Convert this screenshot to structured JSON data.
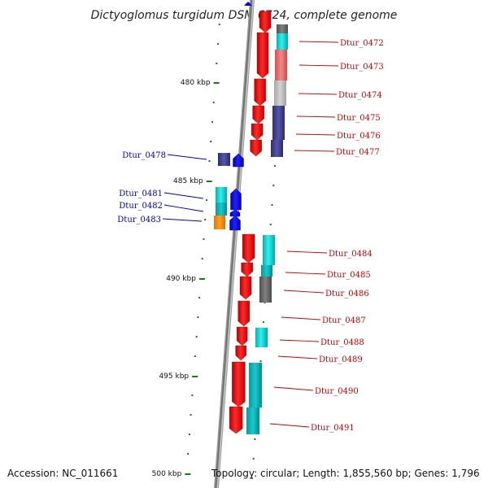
{
  "title": "Dictyoglomus turgidum DSM 6724, complete genome",
  "footer": {
    "accession": "Accession: NC_011661",
    "topology": "Topology: circular; Length: 1,855,560 bp; Genes: 1,796"
  },
  "ticks": [
    {
      "label": "480 kbp",
      "kbp": 480
    },
    {
      "label": "485 kbp",
      "kbp": 485
    },
    {
      "label": "490 kbp",
      "kbp": 490
    },
    {
      "label": "495 kbp",
      "kbp": 495
    },
    {
      "label": "500 kbp",
      "kbp": 500
    }
  ],
  "colors": {
    "forward_label": "#cc0000",
    "reverse_label": "#0000bb",
    "backbone": "#8a8a8a",
    "tick": "#1a7a1a",
    "forward_gene": "#ff0000",
    "reverse_gene": "#0000ee"
  },
  "genes": [
    {
      "name": "Dtur_0472",
      "strand": "forward"
    },
    {
      "name": "Dtur_0473",
      "strand": "forward"
    },
    {
      "name": "Dtur_0474",
      "strand": "forward"
    },
    {
      "name": "Dtur_0475",
      "strand": "forward"
    },
    {
      "name": "Dtur_0476",
      "strand": "forward"
    },
    {
      "name": "Dtur_0477",
      "strand": "forward"
    },
    {
      "name": "Dtur_0478",
      "strand": "reverse"
    },
    {
      "name": "Dtur_0481",
      "strand": "reverse"
    },
    {
      "name": "Dtur_0482",
      "strand": "reverse"
    },
    {
      "name": "Dtur_0483",
      "strand": "reverse"
    },
    {
      "name": "Dtur_0484",
      "strand": "forward"
    },
    {
      "name": "Dtur_0485",
      "strand": "forward"
    },
    {
      "name": "Dtur_0486",
      "strand": "forward"
    },
    {
      "name": "Dtur_0487",
      "strand": "forward"
    },
    {
      "name": "Dtur_0488",
      "strand": "forward"
    },
    {
      "name": "Dtur_0489",
      "strand": "forward"
    },
    {
      "name": "Dtur_0490",
      "strand": "forward"
    },
    {
      "name": "Dtur_0491",
      "strand": "forward"
    }
  ]
}
